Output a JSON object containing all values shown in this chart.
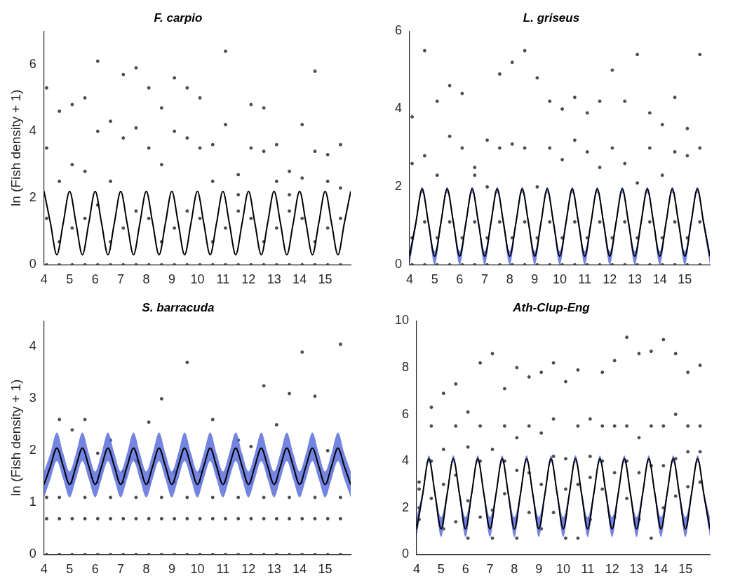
{
  "chart_data": [
    {
      "type": "scatter",
      "title": "F. carpio",
      "ylabel": "ln (Fish density + 1)",
      "xlim": [
        4,
        16
      ],
      "xticks": [
        4,
        5,
        6,
        7,
        8,
        9,
        10,
        11,
        12,
        13,
        14,
        15
      ],
      "ylim": [
        0,
        7
      ],
      "yticks": [
        0,
        2,
        4,
        6
      ],
      "series": [
        {
          "type": "scatter",
          "color": "#4d4d4d",
          "marker": "circle",
          "x": [
            4.1,
            4.1,
            4.1,
            4.1,
            4.6,
            4.6,
            4.6,
            4.6,
            5.1,
            5.1,
            5.1,
            5.1,
            5.6,
            5.6,
            5.6,
            5.6,
            6.1,
            6.1,
            6.1,
            6.1,
            6.6,
            6.6,
            6.6,
            6.6,
            7.1,
            7.1,
            7.1,
            7.1,
            7.6,
            7.6,
            7.6,
            7.6,
            8.1,
            8.1,
            8.1,
            8.1,
            8.6,
            8.6,
            8.6,
            8.6,
            9.1,
            9.1,
            9.1,
            9.1,
            9.6,
            9.6,
            9.6,
            9.6,
            10.1,
            10.1,
            10.1,
            10.1,
            10.6,
            10.6,
            10.6,
            10.6,
            11.1,
            11.1,
            11.1,
            11.1,
            11.6,
            11.6,
            11.6,
            11.6,
            12.1,
            12.1,
            12.1,
            12.1,
            12.6,
            12.6,
            12.6,
            12.6,
            13.1,
            13.1,
            13.1,
            13.1,
            13.6,
            13.6,
            13.6,
            13.6,
            14.1,
            14.1,
            14.1,
            14.1,
            14.6,
            14.6,
            14.6,
            14.6,
            15.1,
            15.1,
            15.1,
            15.1,
            15.6,
            15.6,
            15.6,
            15.6
          ],
          "values": [
            0,
            1.39,
            3.5,
            5.3,
            0,
            0.69,
            2.5,
            4.6,
            0,
            1.1,
            3.0,
            4.8,
            0,
            1.39,
            2.8,
            5.0,
            0,
            1.79,
            4.0,
            6.1,
            0,
            0.69,
            2.5,
            4.3,
            0,
            1.1,
            3.8,
            5.7,
            0,
            1.61,
            4.1,
            5.9,
            0,
            1.39,
            3.5,
            5.3,
            0,
            0.69,
            3.0,
            4.7,
            0,
            1.1,
            4.0,
            5.6,
            0,
            1.61,
            3.8,
            5.3,
            0,
            1.39,
            3.5,
            5.0,
            0,
            0.69,
            2.5,
            3.6,
            0,
            1.1,
            4.2,
            6.4,
            0,
            1.61,
            2.1,
            2.7,
            0,
            1.39,
            3.5,
            4.8,
            0,
            0.69,
            3.4,
            4.7,
            0,
            1.1,
            2.5,
            3.6,
            0,
            1.61,
            2.1,
            2.8,
            0,
            1.39,
            2.6,
            4.2,
            0,
            0.69,
            3.4,
            5.8,
            0,
            1.1,
            2.5,
            3.3,
            0,
            1.39,
            2.3,
            3.6
          ]
        },
        {
          "type": "line",
          "color": "#000000",
          "x": [
            4,
            4.25,
            4.5,
            4.75,
            5,
            5.25,
            5.5,
            5.75,
            6,
            6.25,
            6.5,
            6.75,
            7,
            7.25,
            7.5,
            7.75,
            8,
            8.25,
            8.5,
            8.75,
            9,
            9.25,
            9.5,
            9.75,
            10,
            10.25,
            10.5,
            10.75,
            11,
            11.25,
            11.5,
            11.75,
            12,
            12.25,
            12.5,
            12.75,
            13,
            13.25,
            13.5,
            13.75,
            14,
            14.25,
            14.5,
            14.75,
            15,
            15.25,
            15.5,
            15.75,
            16
          ],
          "values": [
            2.2,
            1.25,
            0.3,
            1.25,
            2.2,
            1.25,
            0.3,
            1.25,
            2.2,
            1.25,
            0.3,
            1.25,
            2.2,
            1.25,
            0.3,
            1.25,
            2.2,
            1.25,
            0.3,
            1.25,
            2.2,
            1.25,
            0.3,
            1.25,
            2.2,
            1.25,
            0.3,
            1.25,
            2.2,
            1.25,
            0.3,
            1.25,
            2.2,
            1.25,
            0.3,
            1.25,
            2.2,
            1.25,
            0.3,
            1.25,
            2.2,
            1.25,
            0.3,
            1.25,
            2.2,
            1.25,
            0.3,
            1.25,
            2.2
          ]
        }
      ]
    },
    {
      "type": "scatter",
      "title": "L. griseus",
      "xlim": [
        4,
        16
      ],
      "xticks": [
        4,
        5,
        6,
        7,
        8,
        9,
        10,
        11,
        12,
        13,
        14,
        15
      ],
      "ylim": [
        0,
        6
      ],
      "yticks": [
        0,
        2,
        4,
        6
      ],
      "series": [
        {
          "type": "scatter",
          "color": "#4d4d4d",
          "marker": "circle",
          "x": [
            4.1,
            4.1,
            4.1,
            4.1,
            4.6,
            4.6,
            4.6,
            4.6,
            5.1,
            5.1,
            5.1,
            5.1,
            5.6,
            5.6,
            5.6,
            5.6,
            6.1,
            6.1,
            6.1,
            6.1,
            6.6,
            6.6,
            6.6,
            6.6,
            7.1,
            7.1,
            7.1,
            7.1,
            7.6,
            7.6,
            7.6,
            7.6,
            8.1,
            8.1,
            8.1,
            8.1,
            8.6,
            8.6,
            8.6,
            8.6,
            9.1,
            9.1,
            9.1,
            9.1,
            9.6,
            9.6,
            9.6,
            9.6,
            10.1,
            10.1,
            10.1,
            10.1,
            10.6,
            10.6,
            10.6,
            10.6,
            11.1,
            11.1,
            11.1,
            11.1,
            11.6,
            11.6,
            11.6,
            11.6,
            12.1,
            12.1,
            12.1,
            12.1,
            12.6,
            12.6,
            12.6,
            12.6,
            13.1,
            13.1,
            13.1,
            13.1,
            13.6,
            13.6,
            13.6,
            13.6,
            14.1,
            14.1,
            14.1,
            14.1,
            14.6,
            14.6,
            14.6,
            14.6,
            15.1,
            15.1,
            15.1,
            15.1,
            15.6,
            15.6,
            15.6,
            15.6
          ],
          "values": [
            0,
            0.69,
            2.6,
            3.8,
            0,
            1.1,
            2.8,
            5.5,
            0,
            0.69,
            2.3,
            4.2,
            0,
            1.1,
            3.3,
            4.6,
            0,
            0.69,
            3.0,
            4.4,
            0,
            1.1,
            2.3,
            2.5,
            0,
            0.69,
            2.0,
            3.2,
            0,
            1.1,
            3.0,
            4.9,
            0,
            0.69,
            3.1,
            5.2,
            0,
            1.1,
            3.0,
            5.5,
            0,
            0.69,
            2.0,
            4.8,
            0,
            1.1,
            3.0,
            4.2,
            0,
            0.69,
            2.7,
            4.0,
            0,
            1.1,
            3.2,
            4.3,
            0,
            0.69,
            2.9,
            3.9,
            0,
            1.1,
            2.5,
            4.2,
            0,
            0.69,
            3.0,
            5.0,
            0,
            1.1,
            2.6,
            4.2,
            0,
            0.69,
            2.1,
            5.4,
            0,
            1.1,
            3.0,
            3.9,
            0,
            0.69,
            2.3,
            3.6,
            0,
            1.1,
            2.9,
            4.3,
            0,
            0.69,
            2.8,
            3.5,
            0,
            1.1,
            3.0,
            5.4
          ]
        },
        {
          "type": "line",
          "color": "#000000",
          "x": [
            4,
            4.25,
            4.5,
            4.75,
            5,
            5.25,
            5.5,
            5.75,
            6,
            6.25,
            6.5,
            6.75,
            7,
            7.25,
            7.5,
            7.75,
            8,
            8.25,
            8.5,
            8.75,
            9,
            9.25,
            9.5,
            9.75,
            10,
            10.25,
            10.5,
            10.75,
            11,
            11.25,
            11.5,
            11.75,
            12,
            12.25,
            12.5,
            12.75,
            13,
            13.25,
            13.5,
            13.75,
            14,
            14.25,
            14.5,
            14.75,
            15,
            15.25,
            15.5,
            15.75,
            16
          ],
          "values": [
            0.22,
            1.08,
            1.95,
            1.08,
            0.22,
            1.08,
            1.95,
            1.08,
            0.22,
            1.08,
            1.95,
            1.08,
            0.22,
            1.08,
            1.95,
            1.08,
            0.22,
            1.08,
            1.95,
            1.08,
            0.22,
            1.08,
            1.95,
            1.08,
            0.22,
            1.08,
            1.95,
            1.08,
            0.22,
            1.08,
            1.95,
            1.08,
            0.22,
            1.08,
            1.95,
            1.08,
            0.22,
            1.08,
            1.95,
            1.08,
            0.22,
            1.08,
            1.95,
            1.08,
            0.22,
            1.08,
            1.95,
            1.08,
            0.22
          ],
          "lower": [
            0,
            0.98,
            1.85,
            0.98,
            0,
            0.98,
            1.85,
            0.98,
            0,
            0.98,
            1.85,
            0.98,
            0,
            0.98,
            1.85,
            0.98,
            0,
            0.98,
            1.85,
            0.98,
            0,
            0.98,
            1.85,
            0.98,
            0,
            0.98,
            1.85,
            0.98,
            0,
            0.98,
            1.85,
            0.98,
            0,
            0.98,
            1.85,
            0.98,
            0,
            0.98,
            1.85,
            0.98,
            0,
            0.98,
            1.85,
            0.98,
            0,
            0.98,
            1.85,
            0.98,
            0
          ],
          "upper": [
            0.35,
            1.18,
            2.0,
            1.18,
            0.35,
            1.18,
            2.0,
            1.18,
            0.35,
            1.18,
            2.0,
            1.18,
            0.35,
            1.18,
            2.0,
            1.18,
            0.35,
            1.18,
            2.0,
            1.18,
            0.35,
            1.18,
            2.0,
            1.18,
            0.35,
            1.18,
            2.0,
            1.18,
            0.35,
            1.18,
            2.0,
            1.18,
            0.35,
            1.18,
            2.0,
            1.18,
            0.35,
            1.18,
            2.0,
            1.18,
            0.35,
            1.18,
            2.0,
            1.18,
            0.35,
            1.18,
            2.0,
            1.18,
            0.35
          ]
        }
      ]
    },
    {
      "type": "scatter",
      "title": "S. barracuda",
      "ylabel": "ln (Fish density + 1)",
      "xlim": [
        4,
        16
      ],
      "xticks": [
        4,
        5,
        6,
        7,
        8,
        9,
        10,
        11,
        12,
        13,
        14,
        15
      ],
      "ylim": [
        0,
        4.5
      ],
      "yticks": [
        0,
        1,
        2,
        3,
        4
      ],
      "series": [
        {
          "type": "scatter",
          "color": "#4d4d4d",
          "marker": "circle",
          "x": [
            4.1,
            4.1,
            4.1,
            4.6,
            4.6,
            4.6,
            4.6,
            5.1,
            5.1,
            5.1,
            5.1,
            5.6,
            5.6,
            5.6,
            5.6,
            6.1,
            6.1,
            6.1,
            6.1,
            6.6,
            6.6,
            6.6,
            6.6,
            7.1,
            7.1,
            7.1,
            7.1,
            7.6,
            7.6,
            7.6,
            7.6,
            8.1,
            8.1,
            8.1,
            8.1,
            8.6,
            8.6,
            8.6,
            8.6,
            9.1,
            9.1,
            9.1,
            9.1,
            9.6,
            9.6,
            9.6,
            9.6,
            10.1,
            10.1,
            10.1,
            10.1,
            10.6,
            10.6,
            10.6,
            10.6,
            11.1,
            11.1,
            11.1,
            11.1,
            11.6,
            11.6,
            11.6,
            11.6,
            12.1,
            12.1,
            12.1,
            12.1,
            12.6,
            12.6,
            12.6,
            12.6,
            13.1,
            13.1,
            13.1,
            13.1,
            13.6,
            13.6,
            13.6,
            13.6,
            14.1,
            14.1,
            14.1,
            14.1,
            14.6,
            14.6,
            14.6,
            14.6,
            15.1,
            15.1,
            15.1,
            15.1,
            15.6,
            15.6,
            15.6,
            15.6
          ],
          "values": [
            0,
            0.69,
            1.1,
            0,
            0.69,
            1.1,
            2.6,
            0,
            0.69,
            1.39,
            2.4,
            0,
            0.69,
            1.1,
            2.6,
            0,
            0.69,
            1.39,
            1.95,
            0,
            0.69,
            1.1,
            2.2,
            0,
            0.69,
            1.39,
            1.6,
            0,
            0.69,
            1.1,
            1.8,
            0,
            0.69,
            1.39,
            2.55,
            0,
            0.69,
            1.1,
            3.0,
            0,
            0.69,
            1.39,
            1.6,
            0,
            0.69,
            1.1,
            3.7,
            0,
            0.69,
            1.39,
            1.6,
            0,
            0.69,
            1.1,
            2.6,
            0,
            0.69,
            1.39,
            1.4,
            0,
            0.69,
            1.1,
            2.2,
            0,
            0.69,
            1.39,
            2.08,
            0,
            0.69,
            1.1,
            3.25,
            0,
            0.69,
            1.39,
            2.5,
            0,
            0.69,
            1.1,
            3.1,
            0,
            0.69,
            1.39,
            3.9,
            0,
            0.69,
            1.1,
            3.05,
            0,
            0.69,
            1.39,
            2.0,
            0,
            0.69,
            1.1,
            4.05
          ]
        },
        {
          "type": "line",
          "color": "#000000",
          "x": [
            4,
            4.25,
            4.5,
            4.75,
            5,
            5.25,
            5.5,
            5.75,
            6,
            6.25,
            6.5,
            6.75,
            7,
            7.25,
            7.5,
            7.75,
            8,
            8.25,
            8.5,
            8.75,
            9,
            9.25,
            9.5,
            9.75,
            10,
            10.25,
            10.5,
            10.75,
            11,
            11.25,
            11.5,
            11.75,
            12,
            12.25,
            12.5,
            12.75,
            13,
            13.25,
            13.5,
            13.75,
            14,
            14.25,
            14.5,
            14.75,
            15,
            15.25,
            15.5,
            15.75,
            16
          ],
          "values": [
            1.35,
            1.7,
            2.05,
            1.7,
            1.35,
            1.7,
            2.05,
            1.7,
            1.35,
            1.7,
            2.05,
            1.7,
            1.35,
            1.7,
            2.05,
            1.7,
            1.35,
            1.7,
            2.05,
            1.7,
            1.35,
            1.7,
            2.05,
            1.7,
            1.35,
            1.7,
            2.05,
            1.7,
            1.35,
            1.7,
            2.05,
            1.7,
            1.35,
            1.7,
            2.05,
            1.7,
            1.35,
            1.7,
            2.05,
            1.7,
            1.35,
            1.7,
            2.05,
            1.7,
            1.35,
            1.7,
            2.05,
            1.7,
            1.35
          ],
          "lower": [
            1.1,
            1.45,
            1.8,
            1.45,
            1.1,
            1.45,
            1.8,
            1.45,
            1.1,
            1.45,
            1.8,
            1.45,
            1.1,
            1.45,
            1.8,
            1.45,
            1.1,
            1.45,
            1.8,
            1.45,
            1.1,
            1.45,
            1.8,
            1.45,
            1.1,
            1.45,
            1.8,
            1.45,
            1.1,
            1.45,
            1.8,
            1.45,
            1.1,
            1.45,
            1.8,
            1.45,
            1.1,
            1.45,
            1.8,
            1.45,
            1.1,
            1.45,
            1.8,
            1.45,
            1.1,
            1.45,
            1.8,
            1.45,
            1.1
          ],
          "upper": [
            1.6,
            1.95,
            2.35,
            1.95,
            1.6,
            1.95,
            2.35,
            1.95,
            1.6,
            1.95,
            2.35,
            1.95,
            1.6,
            1.95,
            2.35,
            1.95,
            1.6,
            1.95,
            2.35,
            1.95,
            1.6,
            1.95,
            2.35,
            1.95,
            1.6,
            1.95,
            2.35,
            1.95,
            1.6,
            1.95,
            2.35,
            1.95,
            1.6,
            1.95,
            2.35,
            1.95,
            1.6,
            1.95,
            2.35,
            1.95,
            1.6,
            1.95,
            2.35,
            1.95,
            1.6,
            1.95,
            2.35,
            1.95,
            1.6
          ]
        }
      ]
    },
    {
      "type": "scatter",
      "title": "Ath-Clup-Eng",
      "xlim": [
        4,
        16
      ],
      "xticks": [
        4,
        5,
        6,
        7,
        8,
        9,
        10,
        11,
        12,
        13,
        14,
        15
      ],
      "ylim": [
        0,
        10
      ],
      "yticks": [
        0,
        2,
        4,
        6,
        8,
        10
      ],
      "series": [
        {
          "type": "scatter",
          "color": "#4d4d4d",
          "marker": "circle",
          "x": [
            4.1,
            4.1,
            4.1,
            4.1,
            4.6,
            4.6,
            4.6,
            4.6,
            5.1,
            5.1,
            5.1,
            5.1,
            5.6,
            5.6,
            5.6,
            5.6,
            6.1,
            6.1,
            6.1,
            6.1,
            6.6,
            6.6,
            6.6,
            6.6,
            7.1,
            7.1,
            7.1,
            7.1,
            7.6,
            7.6,
            7.6,
            7.6,
            8.1,
            8.1,
            8.1,
            8.1,
            8.6,
            8.6,
            8.6,
            8.6,
            9.1,
            9.1,
            9.1,
            9.1,
            9.6,
            9.6,
            9.6,
            9.6,
            10.1,
            10.1,
            10.1,
            10.1,
            10.6,
            10.6,
            10.6,
            10.6,
            11.1,
            11.1,
            11.1,
            11.1,
            11.6,
            11.6,
            11.6,
            11.6,
            12.1,
            12.1,
            12.1,
            12.1,
            12.6,
            12.6,
            12.6,
            12.6,
            13.1,
            13.1,
            13.1,
            13.1,
            13.6,
            13.6,
            13.6,
            13.6,
            14.1,
            14.1,
            14.1,
            14.1,
            14.6,
            14.6,
            14.6,
            14.6,
            15.1,
            15.1,
            15.1,
            15.1,
            15.6,
            15.6,
            15.6,
            15.6
          ],
          "values": [
            1.5,
            2.0,
            2.8,
            3.1,
            2.4,
            4.0,
            5.5,
            6.3,
            1.1,
            3.0,
            4.5,
            6.9,
            1.4,
            3.4,
            5.5,
            7.3,
            0.7,
            2.3,
            4.6,
            6.1,
            1.6,
            4.0,
            5.5,
            8.2,
            0.7,
            1.9,
            4.5,
            8.6,
            2.6,
            4.0,
            5.5,
            7.1,
            0.7,
            3.6,
            5.0,
            8.0,
            1.8,
            3.5,
            5.5,
            7.6,
            1.1,
            3.0,
            5.2,
            7.8,
            1.8,
            4.2,
            5.8,
            8.2,
            0.7,
            2.8,
            4.1,
            7.4,
            0.7,
            3.0,
            5.5,
            7.9,
            1.5,
            3.3,
            4.2,
            5.8,
            2.8,
            4.0,
            5.5,
            7.8,
            1.6,
            3.5,
            5.5,
            8.3,
            2.4,
            4.0,
            5.5,
            9.3,
            1.5,
            3.5,
            5.0,
            8.6,
            0.7,
            3.8,
            5.5,
            8.7,
            2.0,
            3.8,
            5.5,
            9.2,
            2.5,
            4.1,
            6.0,
            8.6,
            2.9,
            4.4,
            5.5,
            7.8,
            3.1,
            4.4,
            5.5,
            8.1
          ]
        },
        {
          "type": "line",
          "color": "#000000",
          "x": [
            4,
            4.25,
            4.5,
            4.75,
            5,
            5.25,
            5.5,
            5.75,
            6,
            6.25,
            6.5,
            6.75,
            7,
            7.25,
            7.5,
            7.75,
            8,
            8.25,
            8.5,
            8.75,
            9,
            9.25,
            9.5,
            9.75,
            10,
            10.25,
            10.5,
            10.75,
            11,
            11.25,
            11.5,
            11.75,
            12,
            12.25,
            12.5,
            12.75,
            13,
            13.25,
            13.5,
            13.75,
            14,
            14.25,
            14.5,
            14.75,
            15,
            15.25,
            15.5,
            15.75,
            16
          ],
          "values": [
            1.1,
            2.6,
            4.1,
            2.6,
            1.1,
            2.6,
            4.1,
            2.6,
            1.1,
            2.6,
            4.1,
            2.6,
            1.1,
            2.6,
            4.1,
            2.6,
            1.1,
            2.6,
            4.1,
            2.6,
            1.1,
            2.6,
            4.1,
            2.6,
            1.1,
            2.6,
            4.1,
            2.6,
            1.1,
            2.6,
            4.1,
            2.6,
            1.1,
            2.6,
            4.1,
            2.6,
            1.1,
            2.6,
            4.1,
            2.6,
            1.1,
            2.6,
            4.1,
            2.6,
            1.1,
            2.6,
            4.1,
            2.6,
            1.1
          ],
          "lower": [
            0.75,
            2.45,
            3.95,
            2.45,
            0.75,
            2.45,
            3.95,
            2.45,
            0.75,
            2.45,
            3.95,
            2.45,
            0.75,
            2.45,
            3.95,
            2.45,
            0.75,
            2.45,
            3.95,
            2.45,
            0.75,
            2.45,
            3.95,
            2.45,
            0.75,
            2.45,
            3.95,
            2.45,
            0.75,
            2.45,
            3.95,
            2.45,
            0.75,
            2.45,
            3.95,
            2.45,
            0.75,
            2.45,
            3.95,
            2.45,
            0.75,
            2.45,
            3.95,
            2.45,
            0.75,
            2.45,
            3.95,
            2.45,
            0.75
          ],
          "upper": [
            1.6,
            2.75,
            4.25,
            2.75,
            1.6,
            2.75,
            4.25,
            2.75,
            1.6,
            2.75,
            4.25,
            2.75,
            1.6,
            2.75,
            4.25,
            2.75,
            1.6,
            2.75,
            4.25,
            2.75,
            1.6,
            2.75,
            4.25,
            2.75,
            1.6,
            2.75,
            4.25,
            2.75,
            1.6,
            2.75,
            4.25,
            2.75,
            1.6,
            2.75,
            4.25,
            2.75,
            1.6,
            2.75,
            4.25,
            2.75,
            1.6,
            2.75,
            4.25,
            2.75,
            1.6,
            2.75,
            4.25,
            2.75,
            1.6
          ]
        }
      ]
    }
  ]
}
